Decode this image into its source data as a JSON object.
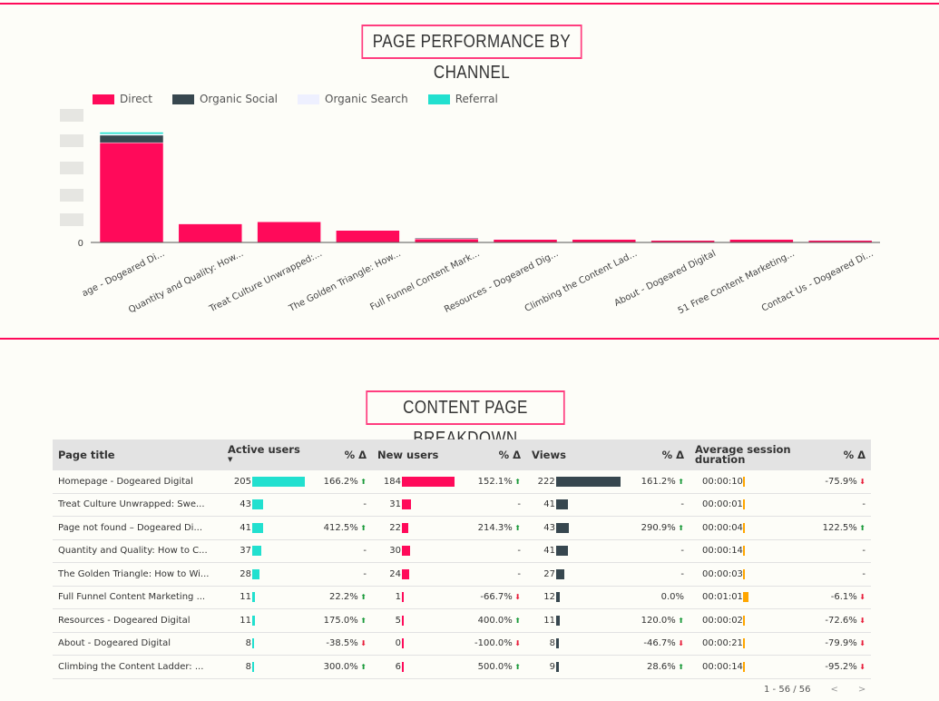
{
  "colors": {
    "accent": "#ff0a5a",
    "direct": "#ff0a5a",
    "organic_social": "#37474f",
    "organic_search": "#eef0ff",
    "referral": "#22e0cf",
    "duration_bar": "#ffa600"
  },
  "chart_section": {
    "title": "PAGE PERFORMANCE BY CHANNEL"
  },
  "chart_data": {
    "type": "bar",
    "stacked": true,
    "title": "PAGE PERFORMANCE BY CHANNEL",
    "xlabel": "",
    "ylabel": "",
    "y_tick_labels_obscured": true,
    "y_zero_label": "0",
    "ylim": [
      0,
      265
    ],
    "grid": false,
    "legend_position": "top-left",
    "categories": [
      "Homepage - Dogeared Di...",
      "Quantity and Quality: How...",
      "Treat Culture Unwrapped:...",
      "The Golden Triangle: How...",
      "Full Funnel Content Mark...",
      "Resources - Dogeared Dig...",
      "Climbing the Content Lad...",
      "About - Dogeared Digital",
      "51 Free Content Marketing...",
      "Contact Us - Dogeared Di..."
    ],
    "category_labels_displayed": [
      "age - Dogeared Di...",
      "Quantity and Quality: How...",
      "Treat Culture Unwrapped:...",
      "The Golden Triangle: How...",
      "Full Funnel Content Mark...",
      "Resources - Dogeared Dig...",
      "Climbing the Content Lad...",
      "About - Dogeared Digital",
      "51 Free Content Marketing...",
      "Contact Us - Dogeared Di..."
    ],
    "series": [
      {
        "name": "Direct",
        "values": [
          198,
          37,
          41,
          24,
          7,
          6,
          6,
          4,
          6,
          4
        ]
      },
      {
        "name": "Organic Social",
        "values": [
          15,
          0,
          0,
          0,
          2,
          1,
          0,
          1,
          0,
          0
        ]
      },
      {
        "name": "Organic Search",
        "values": [
          2,
          1,
          0,
          1,
          1,
          1,
          0,
          1,
          0,
          2
        ]
      },
      {
        "name": "Referral",
        "values": [
          4,
          0,
          0,
          0,
          0,
          0,
          0,
          0,
          0,
          0
        ]
      }
    ]
  },
  "table_section": {
    "title": "CONTENT PAGE BREAKDOWN"
  },
  "table": {
    "headers": [
      "Page title",
      "Active users",
      "% Δ",
      "New users",
      "% Δ",
      "Views",
      "% Δ",
      "Average session duration",
      "% Δ"
    ],
    "sort_indicator": "▼",
    "rows": [
      [
        "Homepage - Dogeared Digital",
        "205",
        "166.2%",
        "184",
        "152.1%",
        "222",
        "161.2%",
        "00:00:10",
        "-75.9%"
      ],
      [
        "Treat Culture Unwrapped: Swe...",
        "43",
        "-",
        "31",
        "-",
        "41",
        "-",
        "00:00:01",
        "-"
      ],
      [
        "Page not found – Dogeared Di...",
        "41",
        "412.5%",
        "22",
        "214.3%",
        "43",
        "290.9%",
        "00:00:04",
        "122.5%"
      ],
      [
        "Quantity and Quality: How to C...",
        "37",
        "-",
        "30",
        "-",
        "41",
        "-",
        "00:00:14",
        "-"
      ],
      [
        "The Golden Triangle: How to Wi...",
        "28",
        "-",
        "24",
        "-",
        "27",
        "-",
        "00:00:03",
        "-"
      ],
      [
        "Full Funnel Content Marketing ...",
        "11",
        "22.2%",
        "1",
        "-66.7%",
        "12",
        "0.0%",
        "00:01:01",
        "-6.1%"
      ],
      [
        "Resources - Dogeared Digital",
        "11",
        "175.0%",
        "5",
        "400.0%",
        "11",
        "120.0%",
        "00:00:02",
        "-72.6%"
      ],
      [
        "About - Dogeared Digital",
        "8",
        "-38.5%",
        "0",
        "-100.0%",
        "8",
        "-46.7%",
        "00:00:21",
        "-79.9%"
      ],
      [
        "Climbing the Content Ladder: ...",
        "8",
        "300.0%",
        "6",
        "500.0%",
        "9",
        "28.6%",
        "00:00:14",
        "-95.2%"
      ]
    ],
    "duration_seconds": [
      10,
      1,
      4,
      14,
      3,
      61,
      2,
      21,
      14
    ],
    "pagination": "1 - 56 / 56"
  }
}
